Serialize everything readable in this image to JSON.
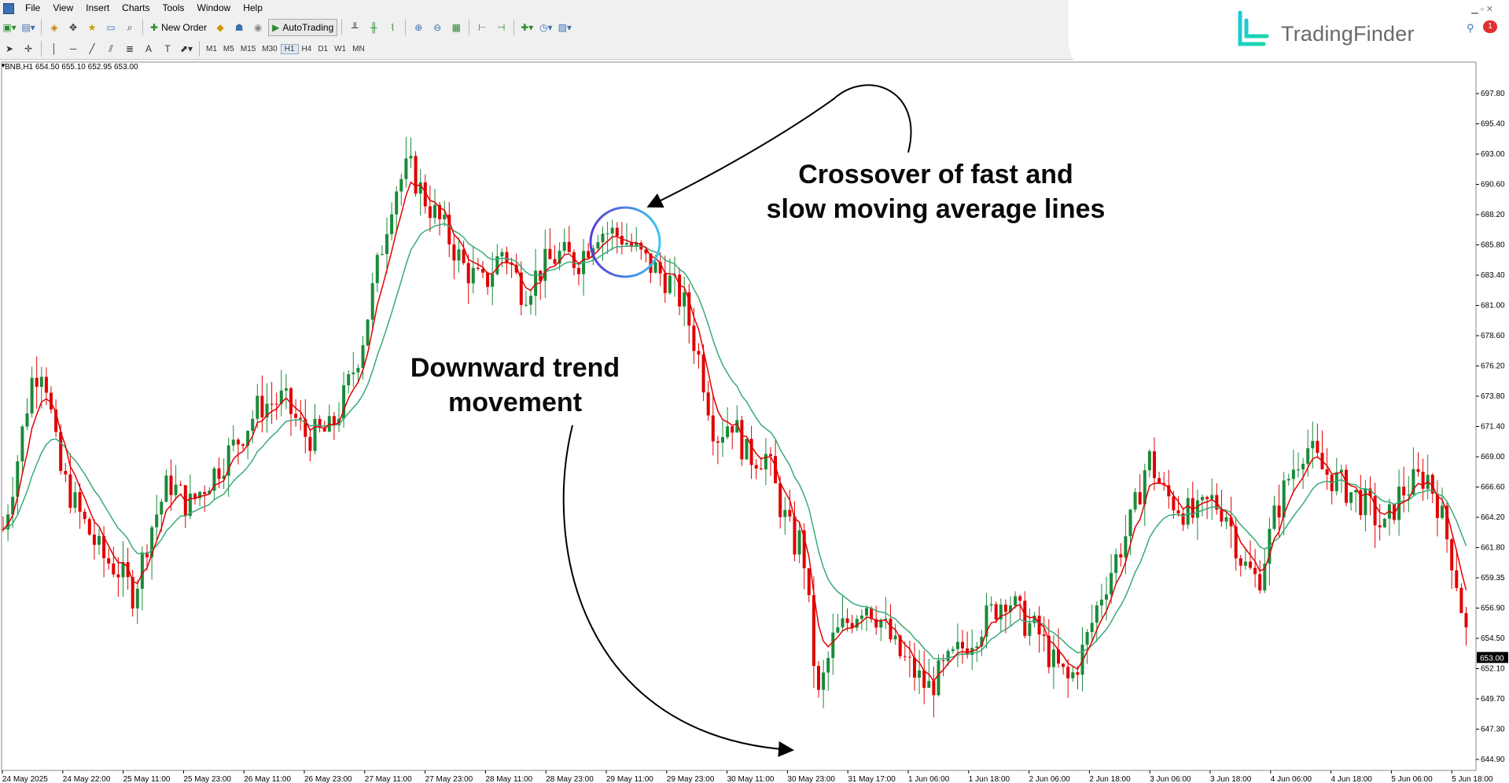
{
  "menu": [
    "File",
    "View",
    "Insert",
    "Charts",
    "Tools",
    "Window",
    "Help"
  ],
  "toolbar": {
    "new_order_label": "New Order",
    "autotrading_label": "AutoTrading",
    "timeframes": [
      "M1",
      "M5",
      "M15",
      "M30",
      "H1",
      "H4",
      "D1",
      "W1",
      "MN"
    ],
    "active_timeframe": "H1"
  },
  "notification_badge": "1",
  "logo": {
    "text": "TradingFinder"
  },
  "chart": {
    "header": "BNB,H1  654.50 655.10 652.95 653.00",
    "current_price": "653.00",
    "y_ticks": [
      "697.80",
      "695.40",
      "693.00",
      "690.60",
      "688.20",
      "685.80",
      "683.40",
      "681.00",
      "678.60",
      "676.20",
      "673.80",
      "671.40",
      "669.00",
      "666.60",
      "664.20",
      "661.80",
      "659.35",
      "656.90",
      "654.50",
      "652.10",
      "649.70",
      "647.30",
      "644.90"
    ],
    "x_ticks": [
      "24 May 2025",
      "24 May 22:00",
      "25 May 11:00",
      "25 May 23:00",
      "26 May 11:00",
      "26 May 23:00",
      "27 May 11:00",
      "27 May 23:00",
      "28 May 11:00",
      "28 May 23:00",
      "29 May 11:00",
      "29 May 23:00",
      "30 May 11:00",
      "30 May 23:00",
      "31 May 17:00",
      "1 Jun 06:00",
      "1 Jun 18:00",
      "2 Jun 06:00",
      "2 Jun 18:00",
      "3 Jun 06:00",
      "3 Jun 18:00",
      "4 Jun 06:00",
      "4 Jun 18:00",
      "5 Jun 06:00",
      "5 Jun 18:00"
    ],
    "bull_color": "#1a8a3a",
    "bear_color": "#e00000",
    "fast_ma_color": "#e00000",
    "slow_ma_color": "#3aaa7a"
  },
  "annotations": {
    "crossover": [
      "Crossover of fast and",
      "slow moving average lines"
    ],
    "downtrend": [
      "Downward trend",
      "movement"
    ]
  }
}
